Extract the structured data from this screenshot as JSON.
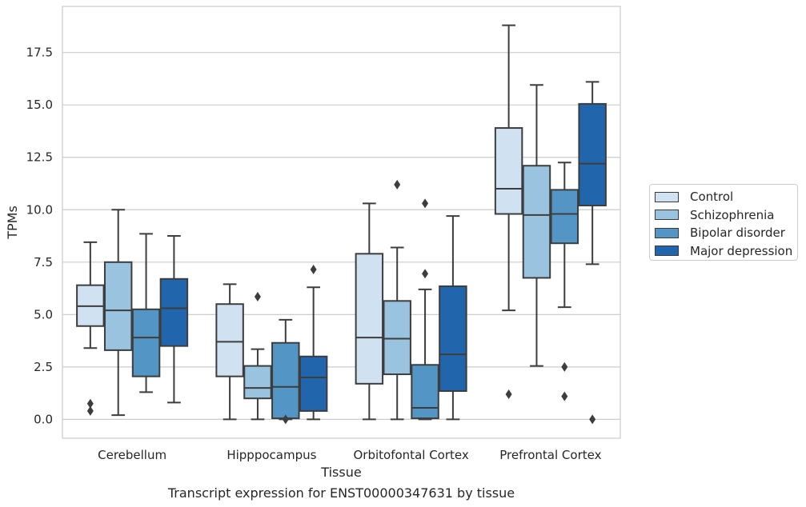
{
  "chart_data": {
    "type": "box",
    "title": "Transcript expression for ENST00000347631 by tissue",
    "xlabel": "Tissue",
    "ylabel": "TPMs",
    "ylim": [
      -0.9,
      19.7
    ],
    "yticks": [
      "0.0",
      "2.5",
      "5.0",
      "7.5",
      "10.0",
      "12.5",
      "15.0",
      "17.5"
    ],
    "grid": "horizontal",
    "legend_position": "right",
    "categories": [
      "Cerebellum",
      "Hipppocampus",
      "Orbitofontal Cortex",
      "Prefrontal Cortex"
    ],
    "series": [
      {
        "name": "Control",
        "color": "#d0e1f1",
        "boxes": [
          {
            "whislo": 3.4,
            "q1": 4.45,
            "med": 5.4,
            "q3": 6.4,
            "whishi": 8.45,
            "fliers": [
              0.75,
              0.4
            ]
          },
          {
            "whislo": 0.0,
            "q1": 2.05,
            "med": 3.7,
            "q3": 5.5,
            "whishi": 6.45,
            "fliers": []
          },
          {
            "whislo": 0.0,
            "q1": 1.7,
            "med": 3.9,
            "q3": 7.9,
            "whishi": 10.3,
            "fliers": []
          },
          {
            "whislo": 5.2,
            "q1": 9.8,
            "med": 11.0,
            "q3": 13.9,
            "whishi": 18.8,
            "fliers": [
              1.2
            ]
          }
        ]
      },
      {
        "name": "Schizophrenia",
        "color": "#99c3de",
        "boxes": [
          {
            "whislo": 0.2,
            "q1": 3.3,
            "med": 5.2,
            "q3": 7.5,
            "whishi": 10.0,
            "fliers": []
          },
          {
            "whislo": 0.0,
            "q1": 1.0,
            "med": 1.5,
            "q3": 2.55,
            "whishi": 3.35,
            "fliers": [
              5.85
            ]
          },
          {
            "whislo": 0.0,
            "q1": 2.15,
            "med": 3.85,
            "q3": 5.65,
            "whishi": 8.2,
            "fliers": [
              11.2
            ]
          },
          {
            "whislo": 2.55,
            "q1": 6.75,
            "med": 9.75,
            "q3": 12.1,
            "whishi": 15.95,
            "fliers": []
          }
        ]
      },
      {
        "name": "Bipolar disorder",
        "color": "#5396c6",
        "boxes": [
          {
            "whislo": 1.3,
            "q1": 2.05,
            "med": 3.9,
            "q3": 5.25,
            "whishi": 8.85,
            "fliers": []
          },
          {
            "whislo": 0.0,
            "q1": 0.05,
            "med": 1.55,
            "q3": 3.65,
            "whishi": 4.75,
            "fliers": [
              0.0
            ]
          },
          {
            "whislo": 0.0,
            "q1": 0.05,
            "med": 0.55,
            "q3": 2.6,
            "whishi": 6.2,
            "fliers": [
              6.95,
              10.3
            ]
          },
          {
            "whislo": 5.35,
            "q1": 8.4,
            "med": 9.8,
            "q3": 10.95,
            "whishi": 12.25,
            "fliers": [
              2.5,
              1.1
            ]
          }
        ]
      },
      {
        "name": "Major depression",
        "color": "#2166ac",
        "boxes": [
          {
            "whislo": 0.8,
            "q1": 3.5,
            "med": 5.3,
            "q3": 6.7,
            "whishi": 8.75,
            "fliers": []
          },
          {
            "whislo": 0.0,
            "q1": 0.4,
            "med": 2.0,
            "q3": 3.0,
            "whishi": 6.3,
            "fliers": [
              7.15
            ]
          },
          {
            "whislo": 0.0,
            "q1": 1.35,
            "med": 3.1,
            "q3": 6.35,
            "whishi": 9.7,
            "fliers": []
          },
          {
            "whislo": 7.4,
            "q1": 10.2,
            "med": 12.2,
            "q3": 15.05,
            "whishi": 16.1,
            "fliers": [
              0.0
            ]
          }
        ]
      }
    ]
  }
}
